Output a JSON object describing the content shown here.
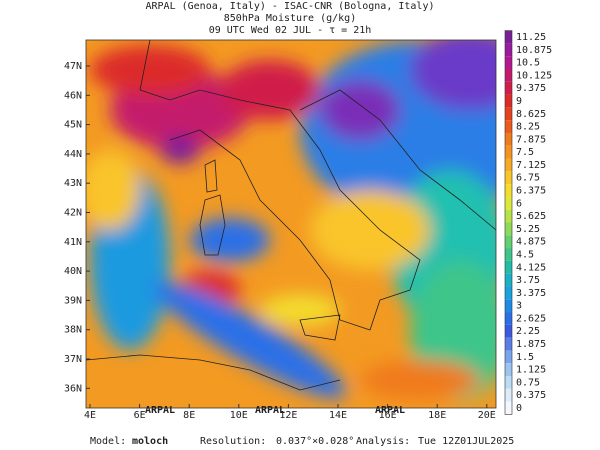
{
  "header": {
    "line1": "ARPAL (Genoa, Italy)  -  ISAC-CNR (Bologna, Italy)",
    "line2": "850hPa Moisture (g/kg)",
    "line3": "09 UTC Wed 02 JUL  -  τ = 21h"
  },
  "map": {
    "lat_labels": [
      "47N",
      "46N",
      "45N",
      "44N",
      "43N",
      "42N",
      "41N",
      "40N",
      "39N",
      "38N",
      "37N",
      "36N"
    ],
    "lon_labels": [
      "4E",
      "6E",
      "8E",
      "10E",
      "12E",
      "14E",
      "16E",
      "18E",
      "20E"
    ],
    "watermark": "ARPAL"
  },
  "colorbar": {
    "levels": [
      11.25,
      10.875,
      10.5,
      10.125,
      9.375,
      9,
      8.625,
      8.25,
      7.875,
      7.5,
      7.125,
      6.75,
      6.375,
      6,
      5.625,
      5.25,
      4.875,
      4.5,
      4.125,
      3.75,
      3.375,
      3,
      2.625,
      2.25,
      1.875,
      1.5,
      1.125,
      0.75,
      0.375,
      0
    ],
    "colors": [
      "#7a1f9a",
      "#9a1aa0",
      "#b4178f",
      "#c41a6c",
      "#d01e48",
      "#dc2a2a",
      "#e5401f",
      "#ec5a1c",
      "#f07a1c",
      "#f4931f",
      "#f7ab24",
      "#f9c52a",
      "#f3dc2e",
      "#dce83a",
      "#b6e34a",
      "#8ed95a",
      "#64cf6e",
      "#3ec58a",
      "#22bba8",
      "#1ab1c6",
      "#1aa2dc",
      "#1e8ae6",
      "#2a6fe8",
      "#3a58e0",
      "#5a7ee6",
      "#7aa4ec",
      "#9cc4f0",
      "#bcdcf4",
      "#dcecf8",
      "#f4f8fc"
    ]
  },
  "footer": {
    "model_label": "Model:",
    "model": "moloch",
    "resolution_label": "Resolution:",
    "resolution": "0.037°×0.028°",
    "analysis_label": "Analysis:",
    "analysis": "Tue 12Z01JUL2025"
  }
}
